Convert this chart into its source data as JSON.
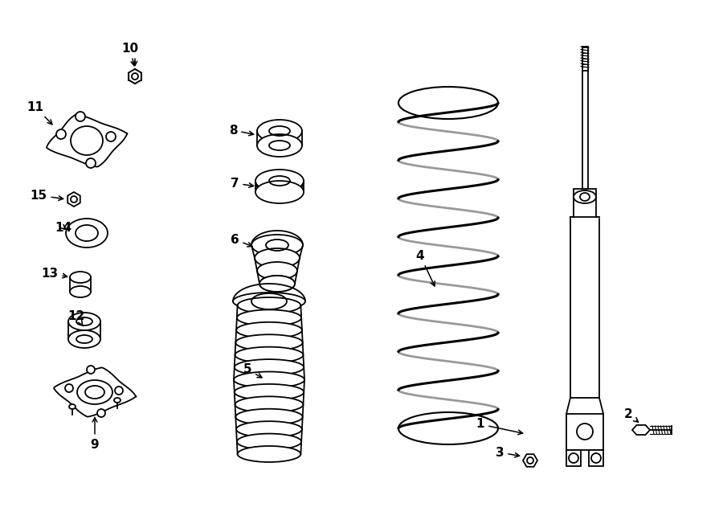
{
  "background_color": "#ffffff",
  "line_color": "#000000",
  "figure_width": 9.0,
  "figure_height": 6.62,
  "dpi": 100
}
